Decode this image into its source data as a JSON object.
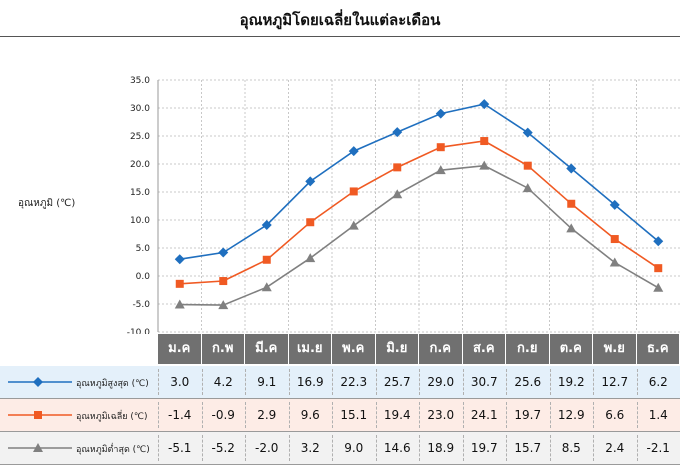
{
  "title": "อุณหภูมิโดยเฉลี่ยในแต่ละเดือน",
  "chart_data": {
    "type": "line",
    "ylabel": "อุณหภูมิ  (℃)",
    "ylim": [
      -10,
      35
    ],
    "yticks": [
      "35.0",
      "30.0",
      "25.0",
      "20.0",
      "15.0",
      "10.0",
      "5.0",
      "0.0",
      "-5.0",
      "-10.0"
    ],
    "categories": [
      "ม.ค",
      "ก.พ",
      "มี.ค",
      "เม.ย",
      "พ.ค",
      "มิ.ย",
      "ก.ค",
      "ส.ค",
      "ก.ย",
      "ต.ค",
      "พ.ย",
      "ธ.ค"
    ],
    "grid": true,
    "series": [
      {
        "name": "อุณหภูมิสูงสุด (℃)",
        "marker": "diamond",
        "color": "#1f6fbf",
        "band": "#e4f0fa",
        "values": [
          3.0,
          4.2,
          9.1,
          16.9,
          22.3,
          25.7,
          29.0,
          30.7,
          25.6,
          19.2,
          12.7,
          6.2
        ],
        "labels": [
          "3.0",
          "4.2",
          "9.1",
          "16.9",
          "22.3",
          "25.7",
          "29.0",
          "30.7",
          "25.6",
          "19.2",
          "12.7",
          "6.2"
        ]
      },
      {
        "name": "อุณหภูมิเฉลี่ย (℃)",
        "marker": "square",
        "color": "#f05a23",
        "band": "#fdece6",
        "values": [
          -1.4,
          -0.9,
          2.9,
          9.6,
          15.1,
          19.4,
          23.0,
          24.1,
          19.7,
          12.9,
          6.6,
          1.4
        ],
        "labels": [
          "-1.4",
          "-0.9",
          "2.9",
          "9.6",
          "15.1",
          "19.4",
          "23.0",
          "24.1",
          "19.7",
          "12.9",
          "6.6",
          "1.4"
        ]
      },
      {
        "name": "อุณหภูมิต่ำสุด (℃)",
        "marker": "triangle",
        "color": "#808080",
        "band": "#f2f2f2",
        "values": [
          -5.1,
          -5.2,
          -2.0,
          3.2,
          9.0,
          14.6,
          18.9,
          19.7,
          15.7,
          8.5,
          2.4,
          -2.1
        ],
        "labels": [
          "-5.1",
          "-5.2",
          "-2.0",
          "3.2",
          "9.0",
          "14.6",
          "18.9",
          "19.7",
          "15.7",
          "8.5",
          "2.4",
          "-2.1"
        ]
      }
    ]
  }
}
